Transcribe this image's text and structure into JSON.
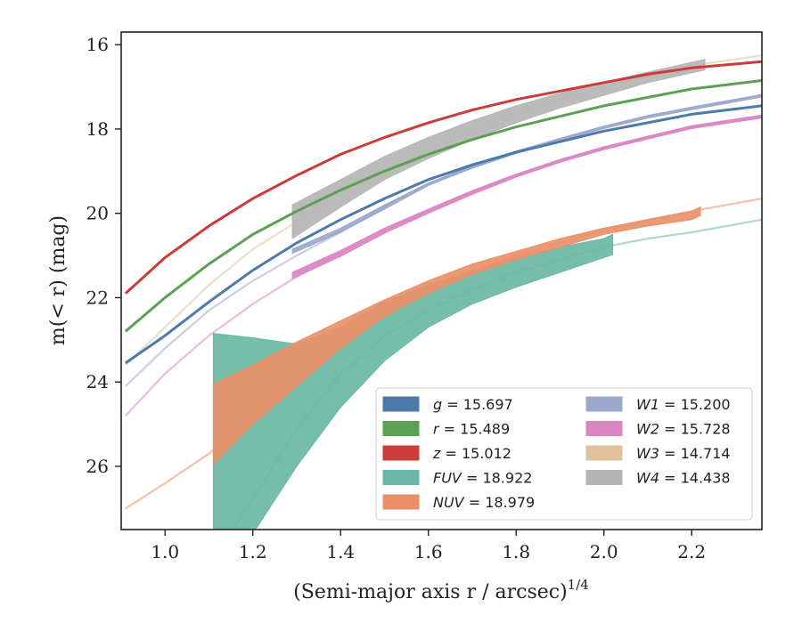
{
  "chart_data": {
    "type": "line",
    "xlabel": "(Semi-major axis r / arcsec)",
    "xlabel_sup": "1/4",
    "ylabel": "m(< r) (mag)",
    "xlim": [
      0.9,
      2.36
    ],
    "ylim": [
      27.5,
      15.7
    ],
    "y_inverted": true,
    "x_ticks": [
      1.0,
      1.2,
      1.4,
      1.6,
      1.8,
      2.0,
      2.2
    ],
    "x_tick_labels": [
      "1.0",
      "1.2",
      "1.4",
      "1.6",
      "1.8",
      "2.0",
      "2.2"
    ],
    "y_ticks": [
      16,
      18,
      20,
      22,
      24,
      26
    ],
    "y_tick_labels": [
      "16",
      "18",
      "20",
      "22",
      "24",
      "26"
    ],
    "grid": false,
    "legend_position": "lower-right",
    "legend_columns": 2,
    "series": [
      {
        "name": "g",
        "total": "15.697",
        "color": "#4c7bab",
        "model_x": [
          0.91,
          1.0,
          1.1,
          1.2,
          1.3,
          1.4,
          1.5,
          1.6,
          1.7,
          1.8,
          1.9,
          2.0,
          2.1,
          2.2,
          2.36
        ],
        "model_y": [
          23.55,
          22.9,
          22.1,
          21.35,
          20.7,
          20.15,
          19.65,
          19.2,
          18.85,
          18.55,
          18.3,
          18.05,
          17.85,
          17.65,
          17.45
        ],
        "band_x": [],
        "band_upper": [],
        "band_lower": []
      },
      {
        "name": "r",
        "total": "15.489",
        "color": "#5ba053",
        "model_x": [
          0.91,
          1.0,
          1.1,
          1.2,
          1.3,
          1.4,
          1.5,
          1.6,
          1.7,
          1.8,
          1.9,
          2.0,
          2.1,
          2.2,
          2.36
        ],
        "model_y": [
          22.8,
          22.0,
          21.2,
          20.5,
          19.95,
          19.45,
          19.0,
          18.6,
          18.25,
          17.95,
          17.7,
          17.45,
          17.25,
          17.05,
          16.85
        ],
        "band_x": [],
        "band_upper": [],
        "band_lower": []
      },
      {
        "name": "z",
        "total": "15.012",
        "color": "#cc3b3b",
        "model_x": [
          0.91,
          1.0,
          1.1,
          1.2,
          1.3,
          1.4,
          1.5,
          1.6,
          1.7,
          1.8,
          1.9,
          2.0,
          2.1,
          2.2,
          2.36
        ],
        "model_y": [
          21.9,
          21.05,
          20.3,
          19.65,
          19.1,
          18.6,
          18.2,
          17.85,
          17.55,
          17.3,
          17.1,
          16.9,
          16.7,
          16.55,
          16.4
        ],
        "band_x": [],
        "band_upper": [],
        "band_lower": []
      },
      {
        "name": "FUV",
        "total": "18.922",
        "color": "#6ab8a3",
        "model_x": [
          1.12,
          1.2,
          1.3,
          1.4,
          1.5,
          1.6,
          1.7,
          1.8,
          1.9,
          2.0,
          2.1,
          2.2,
          2.36
        ],
        "model_y": [
          28.0,
          26.8,
          25.1,
          23.8,
          22.9,
          22.3,
          21.8,
          21.4,
          21.1,
          20.8,
          20.6,
          20.45,
          20.15
        ],
        "band_x": [
          1.11,
          1.2,
          1.3,
          1.4,
          1.5,
          1.6,
          1.7,
          1.8,
          1.9,
          2.0,
          2.02
        ],
        "band_upper": [
          22.85,
          22.95,
          23.1,
          22.7,
          22.1,
          21.7,
          21.35,
          21.05,
          20.8,
          20.6,
          20.5
        ],
        "band_lower": [
          27.6,
          27.6,
          26.0,
          24.6,
          23.5,
          22.7,
          22.15,
          21.75,
          21.4,
          21.05,
          20.98
        ]
      },
      {
        "name": "NUV",
        "total": "18.979",
        "color": "#ea9068",
        "model_x": [
          0.91,
          1.0,
          1.1,
          1.2,
          1.3,
          1.4,
          1.5,
          1.6,
          1.7,
          1.8,
          1.9,
          2.0,
          2.1,
          2.2,
          2.36
        ],
        "model_y": [
          27.0,
          26.4,
          25.7,
          24.8,
          23.9,
          23.1,
          22.4,
          21.85,
          21.4,
          21.0,
          20.7,
          20.4,
          20.15,
          19.95,
          19.65
        ],
        "band_x": [
          1.11,
          1.2,
          1.3,
          1.4,
          1.5,
          1.6,
          1.7,
          1.8,
          1.9,
          2.0,
          2.1,
          2.2,
          2.22
        ],
        "band_upper": [
          24.05,
          23.6,
          23.05,
          22.55,
          22.05,
          21.6,
          21.2,
          20.9,
          20.6,
          20.35,
          20.15,
          19.95,
          19.85
        ],
        "band_lower": [
          25.95,
          25.0,
          24.1,
          23.2,
          22.45,
          21.9,
          21.45,
          21.1,
          20.8,
          20.5,
          20.3,
          20.15,
          20.05
        ]
      },
      {
        "name": "W1",
        "total": "15.200",
        "color": "#9aa8cc",
        "model_x": [
          0.91,
          1.0,
          1.1,
          1.2,
          1.3,
          1.4,
          1.5,
          1.6,
          1.7,
          1.8,
          1.9,
          2.0,
          2.1,
          2.2,
          2.36
        ],
        "model_y": [
          24.1,
          23.2,
          22.3,
          21.6,
          21.0,
          20.45,
          19.85,
          19.3,
          18.9,
          18.55,
          18.25,
          17.95,
          17.7,
          17.5,
          17.2
        ],
        "band_x": [
          1.29,
          1.4,
          1.5,
          1.6,
          1.7,
          1.8,
          1.9,
          2.0,
          2.1,
          2.2,
          2.36
        ],
        "band_upper": [
          20.85,
          20.35,
          19.8,
          19.28,
          18.87,
          18.52,
          18.22,
          17.93,
          17.68,
          17.48,
          17.18
        ],
        "band_lower": [
          20.95,
          20.45,
          19.9,
          19.34,
          18.93,
          18.58,
          18.28,
          17.99,
          17.74,
          17.54,
          17.24
        ]
      },
      {
        "name": "W2",
        "total": "15.728",
        "color": "#d986c2",
        "model_x": [
          0.91,
          1.0,
          1.1,
          1.2,
          1.3,
          1.4,
          1.5,
          1.6,
          1.7,
          1.8,
          1.9,
          2.0,
          2.1,
          2.2,
          2.36
        ],
        "model_y": [
          24.8,
          23.8,
          22.9,
          22.15,
          21.5,
          20.95,
          20.4,
          19.95,
          19.5,
          19.1,
          18.75,
          18.45,
          18.2,
          17.95,
          17.7
        ],
        "band_x": [
          1.29,
          1.4,
          1.5,
          1.6,
          1.7,
          1.8,
          1.9,
          2.0,
          2.1,
          2.2,
          2.36
        ],
        "band_upper": [
          21.4,
          20.88,
          20.35,
          19.9,
          19.46,
          19.07,
          18.72,
          18.42,
          18.17,
          17.92,
          17.67
        ],
        "band_lower": [
          21.55,
          21.02,
          20.47,
          20.0,
          19.55,
          19.14,
          18.79,
          18.49,
          18.24,
          17.99,
          17.74
        ]
      },
      {
        "name": "W3",
        "total": "14.714",
        "color": "#dfc29b",
        "model_x": [
          0.91,
          1.0,
          1.1,
          1.2,
          1.3,
          1.4,
          1.5,
          1.6,
          1.7,
          1.8,
          1.9,
          2.0,
          2.1,
          2.2,
          2.36
        ],
        "model_y": [
          23.6,
          22.7,
          21.7,
          20.85,
          20.2,
          19.55,
          19.0,
          18.5,
          18.05,
          17.65,
          17.3,
          17.0,
          16.75,
          16.5,
          16.25
        ],
        "band_x": [],
        "band_upper": [],
        "band_lower": []
      },
      {
        "name": "W4",
        "total": "14.438",
        "color": "#b5b5b5",
        "model_x": [],
        "model_y": [],
        "band_x": [
          1.29,
          1.4,
          1.5,
          1.6,
          1.7,
          1.8,
          1.9,
          2.0,
          2.1,
          2.23
        ],
        "band_upper": [
          19.8,
          19.2,
          18.65,
          18.2,
          17.8,
          17.45,
          17.15,
          16.9,
          16.65,
          16.35
        ],
        "band_lower": [
          20.6,
          19.85,
          19.2,
          18.7,
          18.25,
          17.85,
          17.5,
          17.2,
          16.9,
          16.6
        ]
      }
    ],
    "legend_left": [
      "g",
      "r",
      "z",
      "FUV",
      "NUV"
    ],
    "legend_right": [
      "W1",
      "W2",
      "W3",
      "W4"
    ]
  }
}
